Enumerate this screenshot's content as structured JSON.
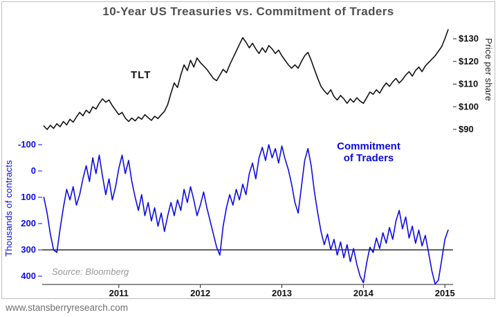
{
  "page": {
    "footer": "www.stansberryresearch.com"
  },
  "chart_data": {
    "type": "line",
    "title": "10-Year US Treasuries vs. Commitment of Traders",
    "source_note": "Source: Bloomberg",
    "x_range": [
      2010.06,
      2015.1
    ],
    "x_axis": {
      "ticks": [
        2011,
        2012,
        2013,
        2014,
        2015
      ]
    },
    "right_axis": {
      "label": "Price per share",
      "tick_prefix": "$",
      "ticks": [
        90,
        100,
        110,
        120,
        130
      ],
      "color": "#111111"
    },
    "left_axis": {
      "label": "Thousands of contracts",
      "ticks": [
        -100,
        0,
        100,
        200,
        300,
        400
      ],
      "inverted": true,
      "color": "#0b0bdf"
    },
    "reference_line": {
      "axis": "left",
      "value": 300,
      "color": "#000000"
    },
    "series": [
      {
        "name": "TLT",
        "label": "TLT",
        "axis": "right",
        "color": "#111111",
        "points": [
          [
            2010.08,
            91.5
          ],
          [
            2010.12,
            90.0
          ],
          [
            2010.16,
            91.8
          ],
          [
            2010.2,
            90.5
          ],
          [
            2010.24,
            92.5
          ],
          [
            2010.28,
            91.2
          ],
          [
            2010.32,
            93.5
          ],
          [
            2010.36,
            92.0
          ],
          [
            2010.4,
            94.5
          ],
          [
            2010.44,
            93.2
          ],
          [
            2010.48,
            95.5
          ],
          [
            2010.52,
            97.5
          ],
          [
            2010.56,
            96.0
          ],
          [
            2010.6,
            98.5
          ],
          [
            2010.64,
            97.2
          ],
          [
            2010.68,
            100.0
          ],
          [
            2010.72,
            99.0
          ],
          [
            2010.76,
            101.5
          ],
          [
            2010.8,
            103.5
          ],
          [
            2010.84,
            102.0
          ],
          [
            2010.88,
            103.0
          ],
          [
            2010.92,
            100.5
          ],
          [
            2010.96,
            98.5
          ],
          [
            2011.0,
            96.5
          ],
          [
            2011.04,
            97.5
          ],
          [
            2011.08,
            95.0
          ],
          [
            2011.12,
            93.5
          ],
          [
            2011.16,
            95.0
          ],
          [
            2011.2,
            93.8
          ],
          [
            2011.24,
            95.5
          ],
          [
            2011.28,
            94.5
          ],
          [
            2011.32,
            96.5
          ],
          [
            2011.36,
            95.2
          ],
          [
            2011.4,
            94.0
          ],
          [
            2011.44,
            95.8
          ],
          [
            2011.48,
            94.8
          ],
          [
            2011.52,
            96.5
          ],
          [
            2011.56,
            98.0
          ],
          [
            2011.6,
            101.0
          ],
          [
            2011.64,
            106.0
          ],
          [
            2011.68,
            110.5
          ],
          [
            2011.72,
            108.5
          ],
          [
            2011.76,
            114.0
          ],
          [
            2011.8,
            118.5
          ],
          [
            2011.84,
            116.0
          ],
          [
            2011.88,
            120.5
          ],
          [
            2011.92,
            117.5
          ],
          [
            2011.96,
            121.5
          ],
          [
            2012.0,
            119.5
          ],
          [
            2012.04,
            118.0
          ],
          [
            2012.08,
            116.5
          ],
          [
            2012.12,
            114.5
          ],
          [
            2012.16,
            112.5
          ],
          [
            2012.2,
            111.5
          ],
          [
            2012.24,
            114.0
          ],
          [
            2012.28,
            116.5
          ],
          [
            2012.32,
            115.0
          ],
          [
            2012.36,
            118.5
          ],
          [
            2012.4,
            121.5
          ],
          [
            2012.44,
            124.5
          ],
          [
            2012.48,
            127.5
          ],
          [
            2012.52,
            130.5
          ],
          [
            2012.56,
            128.5
          ],
          [
            2012.6,
            126.0
          ],
          [
            2012.64,
            128.0
          ],
          [
            2012.68,
            125.5
          ],
          [
            2012.72,
            123.5
          ],
          [
            2012.76,
            126.0
          ],
          [
            2012.8,
            124.0
          ],
          [
            2012.84,
            127.0
          ],
          [
            2012.88,
            125.5
          ],
          [
            2012.92,
            123.5
          ],
          [
            2012.96,
            125.0
          ],
          [
            2013.0,
            122.5
          ],
          [
            2013.04,
            120.5
          ],
          [
            2013.08,
            118.5
          ],
          [
            2013.12,
            117.0
          ],
          [
            2013.16,
            118.5
          ],
          [
            2013.2,
            117.0
          ],
          [
            2013.24,
            120.0
          ],
          [
            2013.28,
            122.5
          ],
          [
            2013.32,
            124.0
          ],
          [
            2013.36,
            120.5
          ],
          [
            2013.4,
            116.5
          ],
          [
            2013.44,
            112.5
          ],
          [
            2013.48,
            109.0
          ],
          [
            2013.52,
            107.0
          ],
          [
            2013.56,
            105.5
          ],
          [
            2013.6,
            107.5
          ],
          [
            2013.64,
            104.5
          ],
          [
            2013.68,
            103.0
          ],
          [
            2013.72,
            105.0
          ],
          [
            2013.76,
            103.5
          ],
          [
            2013.8,
            101.5
          ],
          [
            2013.84,
            103.5
          ],
          [
            2013.88,
            102.0
          ],
          [
            2013.92,
            104.0
          ],
          [
            2013.96,
            102.5
          ],
          [
            2014.0,
            101.5
          ],
          [
            2014.04,
            104.0
          ],
          [
            2014.08,
            106.5
          ],
          [
            2014.12,
            105.5
          ],
          [
            2014.16,
            107.5
          ],
          [
            2014.2,
            106.0
          ],
          [
            2014.24,
            108.5
          ],
          [
            2014.28,
            110.5
          ],
          [
            2014.32,
            109.0
          ],
          [
            2014.36,
            111.0
          ],
          [
            2014.4,
            112.5
          ],
          [
            2014.44,
            110.5
          ],
          [
            2014.48,
            112.0
          ],
          [
            2014.52,
            114.0
          ],
          [
            2014.56,
            115.5
          ],
          [
            2014.6,
            113.5
          ],
          [
            2014.64,
            116.0
          ],
          [
            2014.68,
            117.5
          ],
          [
            2014.72,
            115.5
          ],
          [
            2014.76,
            118.0
          ],
          [
            2014.8,
            119.5
          ],
          [
            2014.84,
            121.0
          ],
          [
            2014.88,
            122.5
          ],
          [
            2014.92,
            124.5
          ],
          [
            2014.96,
            126.5
          ],
          [
            2015.0,
            130.0
          ],
          [
            2015.04,
            134.0
          ]
        ]
      },
      {
        "name": "Commitment of Traders",
        "label_line1": "Commitment",
        "label_line2": "of Traders",
        "axis": "left",
        "color": "#0b0bdf",
        "points": [
          [
            2010.08,
            100
          ],
          [
            2010.12,
            160
          ],
          [
            2010.16,
            240
          ],
          [
            2010.2,
            300
          ],
          [
            2010.24,
            310
          ],
          [
            2010.28,
            220
          ],
          [
            2010.32,
            140
          ],
          [
            2010.36,
            70
          ],
          [
            2010.4,
            110
          ],
          [
            2010.44,
            60
          ],
          [
            2010.48,
            130
          ],
          [
            2010.52,
            90
          ],
          [
            2010.56,
            30
          ],
          [
            2010.6,
            -20
          ],
          [
            2010.64,
            40
          ],
          [
            2010.68,
            -50
          ],
          [
            2010.72,
            10
          ],
          [
            2010.76,
            -60
          ],
          [
            2010.8,
            20
          ],
          [
            2010.84,
            90
          ],
          [
            2010.88,
            30
          ],
          [
            2010.92,
            110
          ],
          [
            2010.96,
            60
          ],
          [
            2011.0,
            -10
          ],
          [
            2011.04,
            -60
          ],
          [
            2011.08,
            10
          ],
          [
            2011.12,
            -40
          ],
          [
            2011.16,
            40
          ],
          [
            2011.2,
            100
          ],
          [
            2011.24,
            150
          ],
          [
            2011.28,
            90
          ],
          [
            2011.32,
            170
          ],
          [
            2011.36,
            120
          ],
          [
            2011.4,
            190
          ],
          [
            2011.44,
            140
          ],
          [
            2011.48,
            210
          ],
          [
            2011.52,
            160
          ],
          [
            2011.56,
            230
          ],
          [
            2011.6,
            170
          ],
          [
            2011.64,
            120
          ],
          [
            2011.68,
            170
          ],
          [
            2011.72,
            110
          ],
          [
            2011.76,
            150
          ],
          [
            2011.8,
            70
          ],
          [
            2011.84,
            120
          ],
          [
            2011.88,
            60
          ],
          [
            2011.92,
            110
          ],
          [
            2011.96,
            170
          ],
          [
            2012.0,
            130
          ],
          [
            2012.04,
            80
          ],
          [
            2012.08,
            140
          ],
          [
            2012.12,
            190
          ],
          [
            2012.16,
            240
          ],
          [
            2012.2,
            290
          ],
          [
            2012.24,
            320
          ],
          [
            2012.28,
            210
          ],
          [
            2012.32,
            140
          ],
          [
            2012.36,
            90
          ],
          [
            2012.4,
            130
          ],
          [
            2012.44,
            70
          ],
          [
            2012.48,
            110
          ],
          [
            2012.52,
            50
          ],
          [
            2012.56,
            90
          ],
          [
            2012.6,
            10
          ],
          [
            2012.64,
            -30
          ],
          [
            2012.68,
            30
          ],
          [
            2012.72,
            -50
          ],
          [
            2012.76,
            -90
          ],
          [
            2012.8,
            -40
          ],
          [
            2012.84,
            -100
          ],
          [
            2012.88,
            -50
          ],
          [
            2012.92,
            -85
          ],
          [
            2012.96,
            -30
          ],
          [
            2013.0,
            -95
          ],
          [
            2013.04,
            -45
          ],
          [
            2013.08,
            -5
          ],
          [
            2013.12,
            50
          ],
          [
            2013.16,
            120
          ],
          [
            2013.2,
            160
          ],
          [
            2013.24,
            60
          ],
          [
            2013.28,
            -40
          ],
          [
            2013.32,
            -85
          ],
          [
            2013.36,
            -20
          ],
          [
            2013.4,
            80
          ],
          [
            2013.44,
            160
          ],
          [
            2013.48,
            230
          ],
          [
            2013.52,
            280
          ],
          [
            2013.56,
            240
          ],
          [
            2013.6,
            300
          ],
          [
            2013.64,
            260
          ],
          [
            2013.68,
            320
          ],
          [
            2013.72,
            270
          ],
          [
            2013.76,
            330
          ],
          [
            2013.8,
            280
          ],
          [
            2013.84,
            345
          ],
          [
            2013.88,
            295
          ],
          [
            2013.92,
            355
          ],
          [
            2013.96,
            400
          ],
          [
            2014.0,
            425
          ],
          [
            2014.04,
            350
          ],
          [
            2014.08,
            290
          ],
          [
            2014.12,
            310
          ],
          [
            2014.16,
            255
          ],
          [
            2014.2,
            295
          ],
          [
            2014.24,
            235
          ],
          [
            2014.28,
            275
          ],
          [
            2014.32,
            215
          ],
          [
            2014.36,
            260
          ],
          [
            2014.4,
            190
          ],
          [
            2014.44,
            150
          ],
          [
            2014.48,
            220
          ],
          [
            2014.52,
            175
          ],
          [
            2014.56,
            255
          ],
          [
            2014.6,
            210
          ],
          [
            2014.64,
            275
          ],
          [
            2014.68,
            225
          ],
          [
            2014.72,
            285
          ],
          [
            2014.76,
            245
          ],
          [
            2014.8,
            310
          ],
          [
            2014.84,
            380
          ],
          [
            2014.88,
            430
          ],
          [
            2014.92,
            415
          ],
          [
            2014.96,
            340
          ],
          [
            2015.0,
            260
          ],
          [
            2015.04,
            225
          ]
        ]
      }
    ]
  }
}
